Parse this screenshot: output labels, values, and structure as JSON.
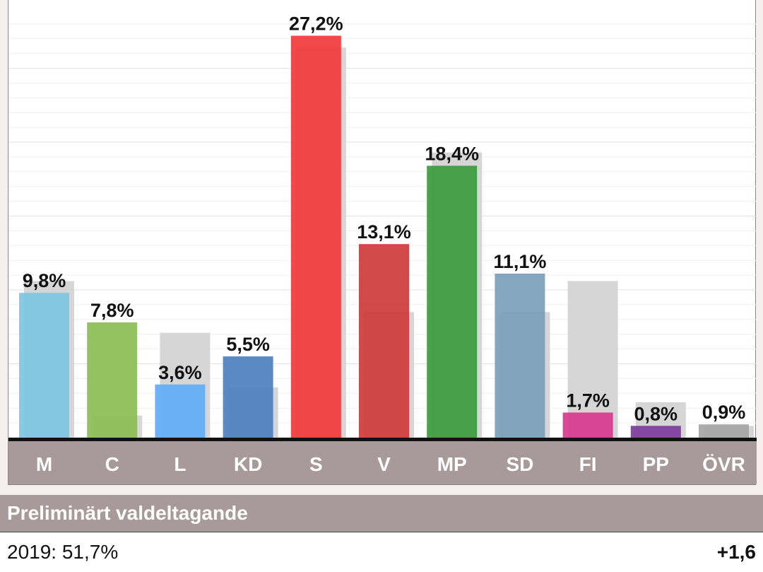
{
  "chart_data": {
    "type": "bar",
    "categories": [
      "M",
      "C",
      "L",
      "KD",
      "S",
      "V",
      "MP",
      "SD",
      "FI",
      "PP",
      "ÖVR"
    ],
    "series": [
      {
        "values": [
          9.8,
          7.8,
          3.6,
          5.5,
          27.2,
          13.1,
          18.4,
          11.1,
          1.7,
          0.8,
          0.9
        ]
      },
      {
        "values": [
          10.6,
          1.5,
          7.1,
          3.4,
          26.4,
          8.5,
          19.3,
          8.5,
          10.6,
          2.4,
          0.8
        ]
      }
    ],
    "value_labels": [
      "9,8%",
      "7,8%",
      "3,6%",
      "5,5%",
      "27,2%",
      "13,1%",
      "18,4%",
      "11,1%",
      "1,7%",
      "0,8%",
      "0,9%"
    ],
    "colors": [
      "#7ec4e2",
      "#8bbd56",
      "#62acf4",
      "#4f7ec1",
      "#f0393b",
      "#cf393c",
      "#3c9a3e",
      "#7a9fba",
      "#d8388e",
      "#7b3c9d",
      "#a5a5a5"
    ],
    "previous_color": "#d6d6d6",
    "ylim": [
      0,
      28
    ],
    "grid": true
  },
  "turnout": {
    "heading": "Preliminärt valdeltagande",
    "previous": "2019: 51,7%",
    "change": "+1,6"
  }
}
